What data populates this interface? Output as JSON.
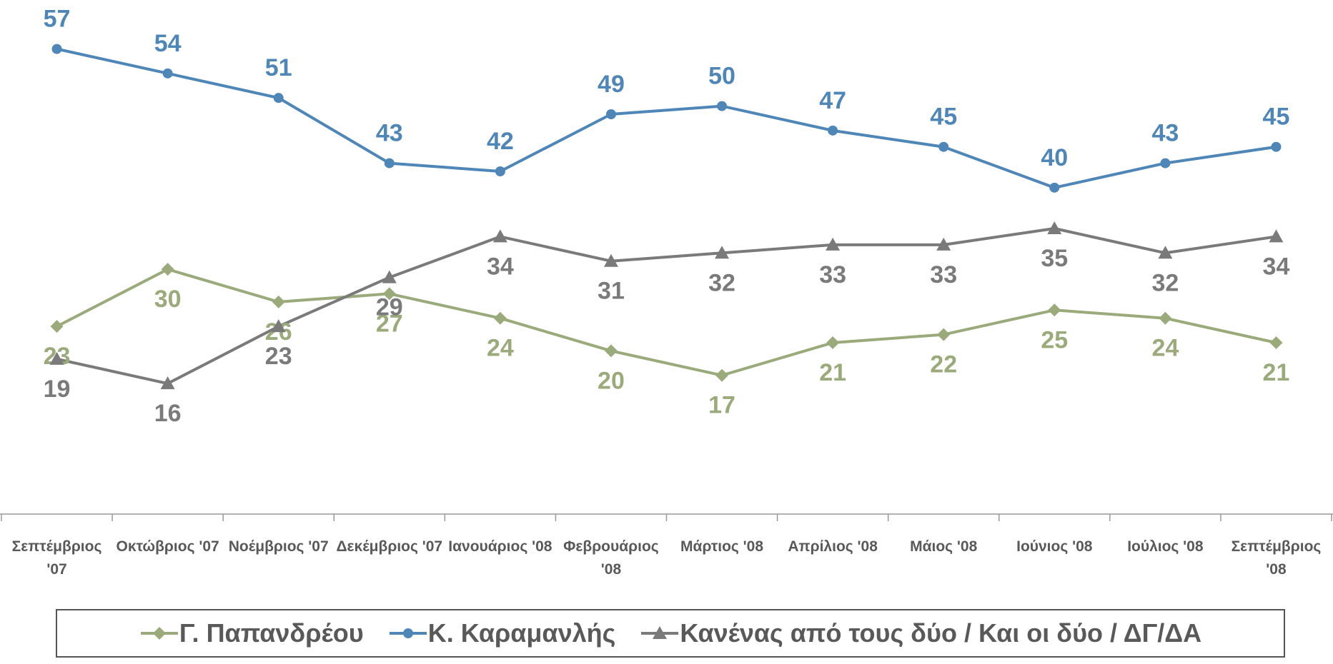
{
  "chart_data": {
    "type": "line",
    "categories": [
      "Σεπτέμβριος '07",
      "Οκτώβριος '07",
      "Νοέμβριος '07",
      "Δεκέμβριος '07",
      "Ιανουάριος '08",
      "Φεβρουάριος '08",
      "Μάρτιος '08",
      "Απρίλιος '08",
      "Μάιος '08",
      "Ιούνιος '08",
      "Ιούλιος '08",
      "Σεπτέμβριος '08"
    ],
    "series": [
      {
        "name": "Γ. Παπανδρέου",
        "color": "#9aaa7a",
        "marker": "diamond",
        "values": [
          23,
          30,
          26,
          27,
          24,
          20,
          17,
          21,
          22,
          25,
          24,
          21
        ]
      },
      {
        "name": "Κ. Καραμανλής",
        "color": "#4f86b8",
        "marker": "circle",
        "values": [
          57,
          54,
          51,
          43,
          42,
          49,
          50,
          47,
          45,
          40,
          43,
          45
        ]
      },
      {
        "name": "Κανένας από τους δύο / Και οι δύο / ΔΓ/ΔΑ",
        "color": "#7a7a7a",
        "marker": "triangle",
        "values": [
          19,
          16,
          23,
          29,
          34,
          31,
          32,
          33,
          33,
          35,
          32,
          34
        ]
      }
    ],
    "ylim": [
      0,
      63
    ],
    "legend": "bottom"
  }
}
